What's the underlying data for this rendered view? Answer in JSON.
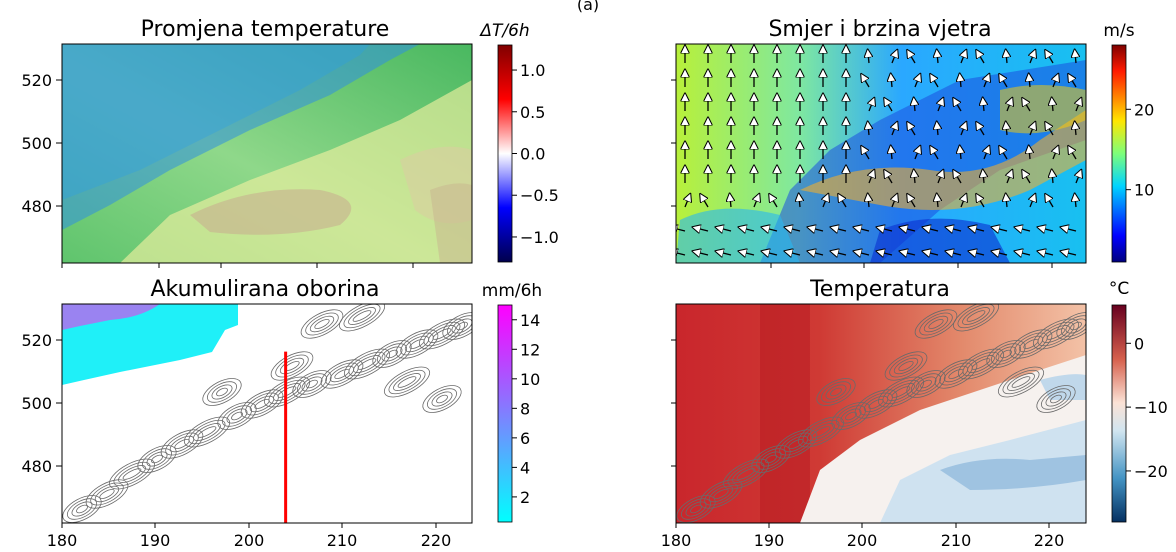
{
  "figure_label": "(a)",
  "chart_data": [
    {
      "type": "heatmap",
      "title": "Promjena temperature",
      "colorbar_label": "ΔT/6h",
      "colorbar_ticks": [
        "1.0",
        "0.5",
        "0.0",
        "−0.5",
        "−1.0"
      ],
      "colorbar_tick_values": [
        1.0,
        0.5,
        0.0,
        -0.5,
        -1.0
      ],
      "colorbar_range": [
        -1.3,
        1.3
      ],
      "colormap": "seismic",
      "xlim": [
        180,
        224
      ],
      "ylim": [
        462,
        531
      ],
      "xticks": [],
      "yticks": [
        "480",
        "500",
        "520"
      ],
      "ytick_values": [
        480,
        500,
        520
      ],
      "overlay": "terrain-colored surface field with scattered small tendency pixels"
    },
    {
      "type": "heatmap",
      "title": "Smjer i brzina vjetra",
      "colorbar_label": "m/s",
      "colorbar_ticks": [
        "20",
        "10"
      ],
      "colorbar_tick_values": [
        20,
        10
      ],
      "colorbar_range": [
        1,
        28
      ],
      "colormap": "jet",
      "xlim": [
        180,
        224
      ],
      "ylim": [
        462,
        531
      ],
      "xticks": [],
      "yticks": [],
      "overlay": "wind arrows (mostly northward) and terrain contours"
    },
    {
      "type": "heatmap",
      "title": "Akumulirana oborina",
      "colorbar_label": "mm/6h",
      "colorbar_ticks": [
        "14",
        "12",
        "10",
        "8",
        "6",
        "4",
        "2"
      ],
      "colorbar_tick_values": [
        14,
        12,
        10,
        8,
        6,
        4,
        2
      ],
      "colorbar_range": [
        0.3,
        15
      ],
      "colormap": "cool",
      "xlim": [
        180,
        224
      ],
      "ylim": [
        462,
        531
      ],
      "xticks": [
        "180",
        "190",
        "200",
        "210",
        "220"
      ],
      "xtick_values": [
        180,
        190,
        200,
        210,
        220
      ],
      "yticks": [
        "480",
        "500",
        "520"
      ],
      "ytick_values": [
        480,
        500,
        520
      ],
      "overlay": "grey terrain contours; red vertical cross-section line at x=204 from y=462 to y=516",
      "section_line": {
        "x": [
          204,
          204
        ],
        "y": [
          462,
          516
        ],
        "color": "#ff0000"
      }
    },
    {
      "type": "heatmap",
      "title": "Temperatura",
      "colorbar_label": "°C",
      "colorbar_ticks": [
        "0",
        "−10",
        "−20"
      ],
      "colorbar_tick_values": [
        0,
        -10,
        -20
      ],
      "colorbar_range": [
        -28,
        6
      ],
      "colormap": "RdBu_r",
      "xlim": [
        180,
        224
      ],
      "ylim": [
        462,
        531
      ],
      "xticks": [
        "180",
        "190",
        "200",
        "210",
        "220"
      ],
      "xtick_values": [
        180,
        190,
        200,
        210,
        220
      ],
      "yticks": [],
      "overlay": "grey terrain contours along the coast"
    }
  ]
}
